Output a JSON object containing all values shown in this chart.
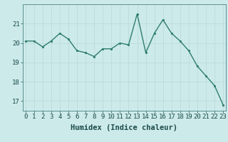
{
  "x": [
    0,
    1,
    2,
    3,
    4,
    5,
    6,
    7,
    8,
    9,
    10,
    11,
    12,
    13,
    14,
    15,
    16,
    17,
    18,
    19,
    20,
    21,
    22,
    23
  ],
  "y": [
    20.1,
    20.1,
    19.8,
    20.1,
    20.5,
    20.2,
    19.6,
    19.5,
    19.3,
    19.7,
    19.7,
    20.0,
    19.9,
    21.5,
    19.5,
    20.5,
    21.2,
    20.5,
    20.1,
    19.6,
    18.8,
    18.3,
    17.8,
    16.8
  ],
  "line_color": "#2e7d6e",
  "bg_color": "#cdeaea",
  "grid_color": "#b8d8d8",
  "axis_color": "#5a9090",
  "xlabel": "Humidex (Indice chaleur)",
  "yticks": [
    17,
    18,
    19,
    20,
    21
  ],
  "xticks": [
    0,
    1,
    2,
    3,
    4,
    5,
    6,
    7,
    8,
    9,
    10,
    11,
    12,
    13,
    14,
    15,
    16,
    17,
    18,
    19,
    20,
    21,
    22,
    23
  ],
  "ylim": [
    16.5,
    22.0
  ],
  "xlim": [
    -0.3,
    23.3
  ],
  "marker_size": 2.5,
  "linewidth": 1.0,
  "font_color": "#1a4a4a",
  "tick_fontsize": 6.5,
  "xlabel_fontsize": 7.5
}
